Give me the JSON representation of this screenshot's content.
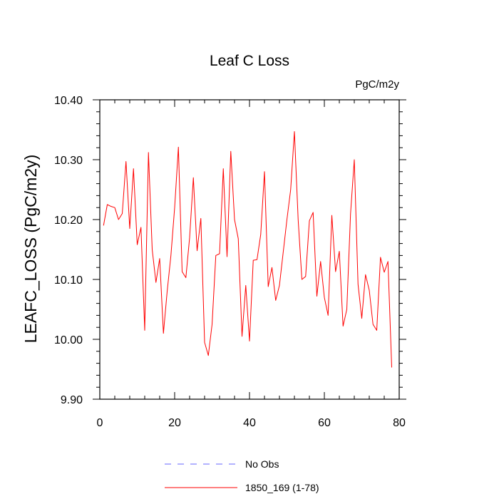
{
  "chart_data": {
    "type": "line",
    "title": "Leaf C Loss",
    "units_label": "PgC/m2y",
    "xlabel": "",
    "ylabel": "LEAFC_LOSS  (PgC/m2y)",
    "xlim": [
      0,
      80
    ],
    "ylim": [
      9.9,
      10.4
    ],
    "x_ticks": [
      0,
      20,
      40,
      60,
      80
    ],
    "x_tick_labels": [
      "0",
      "20",
      "40",
      "60",
      "80"
    ],
    "y_ticks": [
      9.9,
      10.0,
      10.1,
      10.2,
      10.3,
      10.4
    ],
    "y_tick_labels": [
      "9.90",
      "10.00",
      "10.10",
      "10.20",
      "10.30",
      "10.40"
    ],
    "x_minor_step": 4,
    "y_minor_step": 0.02,
    "series": [
      {
        "name": "1850_169 (1-78)",
        "color": "#ff0000",
        "style": "solid",
        "x": [
          1,
          2,
          3,
          4,
          5,
          6,
          7,
          8,
          9,
          10,
          11,
          12,
          13,
          14,
          15,
          16,
          17,
          18,
          19,
          20,
          21,
          22,
          23,
          24,
          25,
          26,
          27,
          28,
          29,
          30,
          31,
          32,
          33,
          34,
          35,
          36,
          37,
          38,
          39,
          40,
          41,
          42,
          43,
          44,
          45,
          46,
          47,
          48,
          49,
          50,
          51,
          52,
          53,
          54,
          55,
          56,
          57,
          58,
          59,
          60,
          61,
          62,
          63,
          64,
          65,
          66,
          67,
          68,
          69,
          70,
          71,
          72,
          73,
          74,
          75,
          76,
          77,
          78
        ],
        "values": [
          10.19,
          10.225,
          10.222,
          10.22,
          10.2,
          10.21,
          10.297,
          10.185,
          10.285,
          10.158,
          10.187,
          10.015,
          10.312,
          10.15,
          10.095,
          10.135,
          10.01,
          10.08,
          10.14,
          10.22,
          10.321,
          10.113,
          10.103,
          10.17,
          10.27,
          10.148,
          10.202,
          9.995,
          9.973,
          10.025,
          10.14,
          10.143,
          10.285,
          10.138,
          10.314,
          10.2,
          10.168,
          10.005,
          10.09,
          9.997,
          10.132,
          10.133,
          10.175,
          10.28,
          10.088,
          10.12,
          10.065,
          10.09,
          10.145,
          10.2,
          10.25,
          10.347,
          10.2,
          10.1,
          10.105,
          10.198,
          10.212,
          10.072,
          10.13,
          10.07,
          10.04,
          10.207,
          10.113,
          10.147,
          10.022,
          10.05,
          10.21,
          10.3,
          10.092,
          10.035,
          10.108,
          10.082,
          10.025,
          10.015,
          10.137,
          10.112,
          10.13,
          9.953
        ]
      },
      {
        "name": "No Obs",
        "color": "#6666ff",
        "style": "dashed",
        "x": [],
        "values": []
      }
    ],
    "legend": [
      {
        "label": "No Obs",
        "color": "#6666ff",
        "style": "dashed"
      },
      {
        "label": "1850_169 (1-78)",
        "color": "#ff0000",
        "style": "solid"
      }
    ]
  }
}
